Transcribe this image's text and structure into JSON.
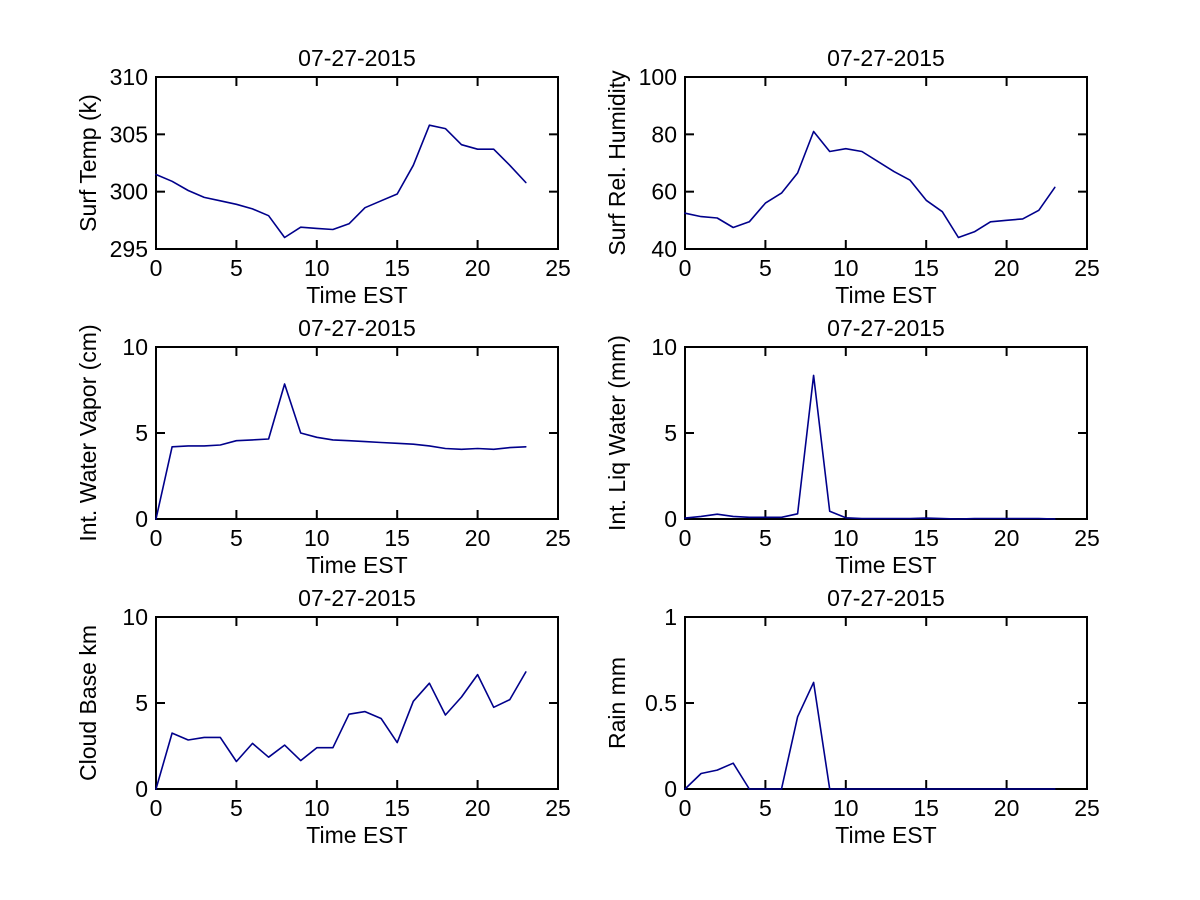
{
  "figure": {
    "background": "#ffffff",
    "axis_color": "#000000",
    "line_color": "#00008b",
    "date": "07-27-2015"
  },
  "chart_data": [
    {
      "type": "line",
      "title": "07-27-2015",
      "xlabel": "Time EST",
      "ylabel": "Surf Temp (k)",
      "xlim": [
        0,
        25
      ],
      "ylim": [
        295,
        310
      ],
      "xticks": [
        0,
        5,
        10,
        15,
        20,
        25
      ],
      "yticks": [
        295,
        300,
        305,
        310
      ],
      "grid": false,
      "x": [
        0,
        1,
        2,
        3,
        4,
        5,
        6,
        7,
        8,
        9,
        10,
        11,
        12,
        13,
        14,
        15,
        16,
        17,
        18,
        19,
        20,
        21,
        22,
        23
      ],
      "y": [
        301.5,
        300.9,
        300.1,
        299.5,
        299.2,
        298.9,
        298.5,
        297.9,
        296.0,
        296.9,
        296.8,
        296.7,
        297.2,
        298.6,
        299.2,
        299.8,
        302.3,
        305.8,
        305.5,
        304.1,
        303.7,
        303.7,
        302.3,
        300.8
      ]
    },
    {
      "type": "line",
      "title": "07-27-2015",
      "xlabel": "Time EST",
      "ylabel": "Surf Rel. Humidity",
      "xlim": [
        0,
        25
      ],
      "ylim": [
        40,
        100
      ],
      "xticks": [
        0,
        5,
        10,
        15,
        20,
        25
      ],
      "yticks": [
        40,
        60,
        80,
        100
      ],
      "grid": false,
      "x": [
        0,
        1,
        2,
        3,
        4,
        5,
        6,
        7,
        8,
        9,
        10,
        11,
        12,
        13,
        14,
        15,
        16,
        17,
        18,
        19,
        20,
        21,
        22,
        23
      ],
      "y": [
        52.5,
        51.3,
        50.8,
        47.5,
        49.5,
        56,
        59.5,
        66.5,
        81,
        74,
        75,
        74,
        70.5,
        67,
        64,
        57,
        53,
        44,
        46,
        49.5,
        50,
        50.5,
        53.5,
        61.5
      ]
    },
    {
      "type": "line",
      "title": "07-27-2015",
      "xlabel": "Time EST",
      "ylabel": "Int. Water Vapor (cm)",
      "xlim": [
        0,
        25
      ],
      "ylim": [
        0,
        10
      ],
      "xticks": [
        0,
        5,
        10,
        15,
        20,
        25
      ],
      "yticks": [
        0,
        5,
        10
      ],
      "grid": false,
      "x": [
        0,
        1,
        2,
        3,
        4,
        5,
        6,
        7,
        8,
        9,
        10,
        11,
        12,
        13,
        14,
        15,
        16,
        17,
        18,
        19,
        20,
        21,
        22,
        23
      ],
      "y": [
        0,
        4.2,
        4.25,
        4.25,
        4.3,
        4.55,
        4.6,
        4.65,
        7.85,
        5.0,
        4.75,
        4.6,
        4.55,
        4.5,
        4.45,
        4.4,
        4.35,
        4.25,
        4.1,
        4.05,
        4.1,
        4.05,
        4.15,
        4.2
      ]
    },
    {
      "type": "line",
      "title": "07-27-2015",
      "xlabel": "Time EST",
      "ylabel": "Int. Liq Water (mm)",
      "xlim": [
        0,
        25
      ],
      "ylim": [
        0,
        10
      ],
      "xticks": [
        0,
        5,
        10,
        15,
        20,
        25
      ],
      "yticks": [
        0,
        5,
        10
      ],
      "grid": false,
      "x": [
        0,
        1,
        2,
        3,
        4,
        5,
        6,
        7,
        8,
        9,
        10,
        11,
        12,
        13,
        14,
        15,
        16,
        17,
        18,
        19,
        20,
        21,
        22,
        23
      ],
      "y": [
        0.05,
        0.15,
        0.28,
        0.15,
        0.1,
        0.1,
        0.1,
        0.3,
        8.35,
        0.45,
        0.07,
        0.03,
        0.03,
        0.03,
        0.03,
        0.05,
        0.03,
        0.0,
        0.03,
        0.03,
        0.03,
        0.03,
        0.03,
        0.0
      ]
    },
    {
      "type": "line",
      "title": "07-27-2015",
      "xlabel": "Time EST",
      "ylabel": "Cloud Base km",
      "xlim": [
        0,
        25
      ],
      "ylim": [
        0,
        10
      ],
      "xticks": [
        0,
        5,
        10,
        15,
        20,
        25
      ],
      "yticks": [
        0,
        5,
        10
      ],
      "grid": false,
      "x": [
        0,
        1,
        2,
        3,
        4,
        5,
        6,
        7,
        8,
        9,
        10,
        11,
        12,
        13,
        14,
        15,
        16,
        17,
        18,
        19,
        20,
        21,
        22,
        23
      ],
      "y": [
        0,
        3.25,
        2.85,
        3.0,
        3.0,
        1.6,
        2.65,
        1.85,
        2.55,
        1.65,
        2.4,
        2.4,
        4.35,
        4.5,
        4.1,
        2.7,
        5.1,
        6.15,
        4.3,
        5.35,
        6.65,
        4.75,
        5.2,
        6.8
      ]
    },
    {
      "type": "line",
      "title": "07-27-2015",
      "xlabel": "Time EST",
      "ylabel": "Rain mm",
      "xlim": [
        0,
        25
      ],
      "ylim": [
        0,
        1
      ],
      "xticks": [
        0,
        5,
        10,
        15,
        20,
        25
      ],
      "yticks": [
        0,
        0.5,
        1
      ],
      "grid": false,
      "x": [
        0,
        1,
        2,
        3,
        4,
        5,
        6,
        7,
        8,
        9,
        10,
        11,
        12,
        13,
        14,
        15,
        16,
        17,
        18,
        19,
        20,
        21,
        22,
        23
      ],
      "y": [
        0,
        0.09,
        0.11,
        0.15,
        0,
        0,
        0,
        0.42,
        0.62,
        0,
        0,
        0,
        0,
        0,
        0,
        0,
        0,
        0,
        0,
        0,
        0,
        0,
        0,
        0
      ]
    }
  ]
}
